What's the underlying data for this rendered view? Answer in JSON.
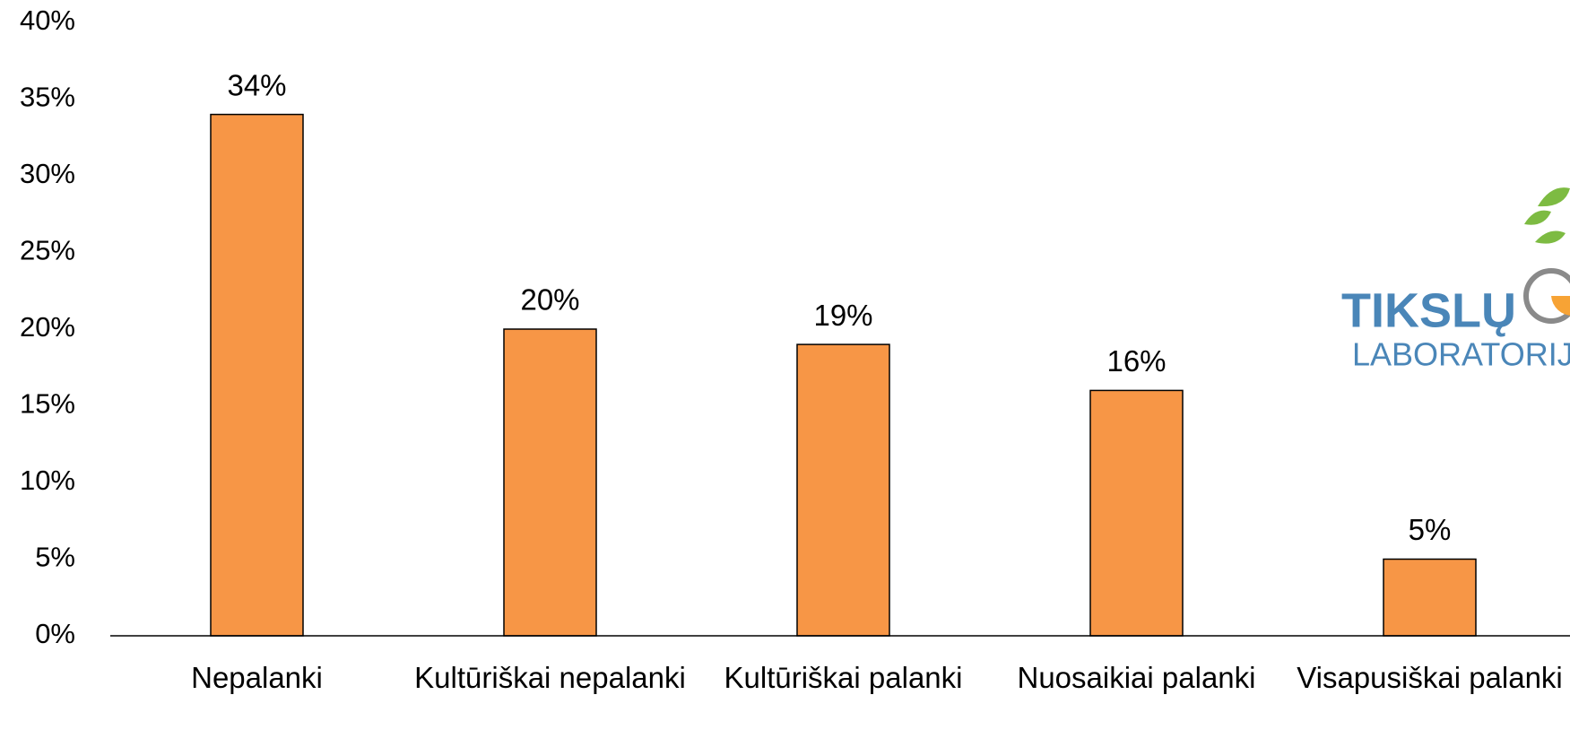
{
  "chart_data": {
    "type": "bar",
    "categories": [
      "Nepalanki",
      "Kultūriškai nepalanki",
      "Kultūriškai palanki",
      "Nuosaikiai palanki",
      "Visapusiškai palanki"
    ],
    "values": [
      34,
      20,
      19,
      16,
      5
    ],
    "value_labels": [
      "34%",
      "20%",
      "19%",
      "16%",
      "5%"
    ],
    "color": "#f79646",
    "ylim": [
      0,
      40
    ],
    "yticks": [
      {
        "value": 0,
        "label": "0%"
      },
      {
        "value": 5,
        "label": "5%"
      },
      {
        "value": 10,
        "label": "10%"
      },
      {
        "value": 15,
        "label": "15%"
      },
      {
        "value": 20,
        "label": "20%"
      },
      {
        "value": 25,
        "label": "25%"
      },
      {
        "value": 30,
        "label": "30%"
      },
      {
        "value": 35,
        "label": "35%"
      },
      {
        "value": 40,
        "label": "40%"
      }
    ],
    "grid": false
  },
  "logo": {
    "line1": "TIKSLŲ",
    "line2": "LABORATORIJA"
  }
}
